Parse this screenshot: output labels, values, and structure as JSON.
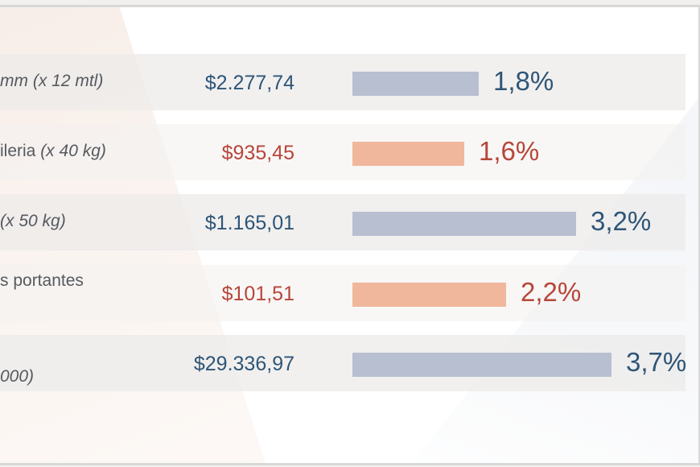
{
  "colors": {
    "blue_text": "#2e5577",
    "red_text": "#b6463a",
    "blue_bar": "#b7bfd0",
    "orange_bar": "#f1b79c"
  },
  "chart_data": {
    "type": "bar",
    "orientation": "horizontal",
    "rows": [
      {
        "label_italic": "mm (x 12 mtl)",
        "label_plain": "",
        "label_line2": "",
        "price": "$2.277,74",
        "value": 1.8,
        "value_label": "1,8%",
        "color": "blue"
      },
      {
        "label_italic": "(x 40 kg)",
        "label_plain": "ileria ",
        "label_line2": "",
        "price": "$935,45",
        "value": 1.6,
        "value_label": "1,6%",
        "color": "red"
      },
      {
        "label_italic": "(x 50 kg)",
        "label_plain": "",
        "label_line2": "",
        "price": "$1.165,01",
        "value": 3.2,
        "value_label": "3,2%",
        "color": "blue"
      },
      {
        "label_italic": "",
        "label_plain": "s portantes",
        "label_line2": "",
        "price": "$101,51",
        "value": 2.2,
        "value_label": "2,2%",
        "color": "red"
      },
      {
        "label_italic": "",
        "label_plain": "",
        "label_line2": "000)",
        "price": "$29.336,97",
        "value": 3.7,
        "value_label": "3,7%",
        "color": "blue"
      }
    ]
  }
}
